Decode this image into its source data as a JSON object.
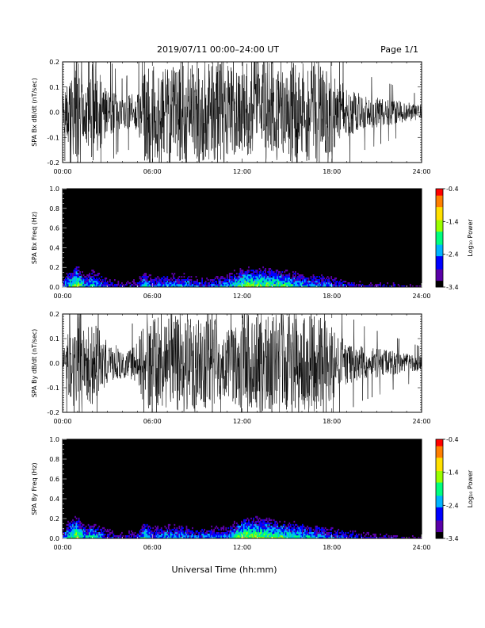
{
  "header": {
    "title": "2019/07/11  00:00–24:00 UT",
    "page": "Page 1/1"
  },
  "footer": {
    "xlabel": "Universal Time (hh:mm)"
  },
  "colors": {
    "trace": "#000000",
    "spectrogram_background": "#000000",
    "colorscale": [
      "#000000",
      "#5a00a8",
      "#0000ff",
      "#00b4ff",
      "#00ff7f",
      "#9aff00",
      "#ffe000",
      "#ff7f00",
      "#ff0000"
    ]
  },
  "chart_data": [
    {
      "type": "line",
      "ylabel": "SPA Bx dB/dt (nT/sec)",
      "xlim": [
        "00:00",
        "24:00"
      ],
      "ylim": [
        -0.2,
        0.2
      ],
      "x_ticks": [
        "00:00",
        "06:00",
        "12:00",
        "18:00",
        "24:00"
      ],
      "y_ticks": [
        "-0.2",
        "-0.1",
        "0.0",
        "0.1",
        "0.2"
      ],
      "series": [
        {
          "x_hours": [
            0,
            0.5,
            1,
            1.5,
            2,
            3,
            4,
            5,
            5.5,
            6,
            7,
            8,
            9,
            10,
            11,
            12,
            13,
            14,
            15,
            16,
            17,
            18,
            19,
            20,
            21,
            22,
            23,
            24
          ],
          "amplitude": [
            0.06,
            0.15,
            0.2,
            0.12,
            0.2,
            0.1,
            0.06,
            0.08,
            0.2,
            0.2,
            0.17,
            0.2,
            0.2,
            0.2,
            0.2,
            0.2,
            0.2,
            0.2,
            0.2,
            0.2,
            0.2,
            0.16,
            0.1,
            0.07,
            0.06,
            0.05,
            0.04,
            0.03
          ]
        }
      ]
    },
    {
      "type": "heatmap",
      "ylabel": "SPA Bx Freq (Hz)",
      "colorbar_label": "Log₁₀ Power",
      "colorbar_ticks": [
        "-0.4",
        "-1.4",
        "-2.4",
        "-3.4"
      ],
      "clim": [
        -3.4,
        -0.4
      ],
      "xlim": [
        "00:00",
        "24:00"
      ],
      "ylim": [
        0.0,
        1.0
      ],
      "x_ticks": [
        "00:00",
        "06:00",
        "12:00",
        "18:00",
        "24:00"
      ],
      "y_ticks": [
        "0.0",
        "0.2",
        "0.4",
        "0.6",
        "0.8",
        "1.0"
      ],
      "x_hours": [
        0,
        0.5,
        1,
        1.5,
        2,
        3,
        4,
        5,
        5.5,
        6,
        7,
        8,
        9,
        10,
        11,
        12,
        13,
        14,
        15,
        16,
        17,
        18,
        19,
        20,
        21,
        22,
        23,
        24
      ],
      "low_freq_power": [
        -2.6,
        -1.8,
        -1.4,
        -2.2,
        -1.9,
        -2.6,
        -2.9,
        -2.7,
        -1.9,
        -2.5,
        -2.2,
        -2.2,
        -2.5,
        -2.4,
        -2.2,
        -1.6,
        -1.5,
        -1.7,
        -1.8,
        -2.1,
        -2.2,
        -2.4,
        -2.7,
        -2.9,
        -3.0,
        -3.0,
        -3.1,
        -3.2
      ]
    },
    {
      "type": "line",
      "ylabel": "SPA By dB/dt (nT/sec)",
      "xlim": [
        "00:00",
        "24:00"
      ],
      "ylim": [
        -0.2,
        0.2
      ],
      "x_ticks": [
        "00:00",
        "06:00",
        "12:00",
        "18:00",
        "24:00"
      ],
      "y_ticks": [
        "-0.2",
        "-0.1",
        "0.0",
        "0.1",
        "0.2"
      ],
      "series": [
        {
          "x_hours": [
            0,
            0.5,
            1,
            1.5,
            2,
            3,
            4,
            5,
            5.5,
            6,
            7,
            8,
            9,
            10,
            11,
            12,
            13,
            14,
            15,
            16,
            17,
            18,
            19,
            20,
            21,
            22,
            23,
            24
          ],
          "amplitude": [
            0.05,
            0.15,
            0.2,
            0.12,
            0.2,
            0.09,
            0.06,
            0.08,
            0.2,
            0.2,
            0.18,
            0.2,
            0.2,
            0.2,
            0.14,
            0.2,
            0.2,
            0.2,
            0.2,
            0.2,
            0.2,
            0.15,
            0.09,
            0.07,
            0.06,
            0.05,
            0.04,
            0.03
          ]
        }
      ]
    },
    {
      "type": "heatmap",
      "ylabel": "SPA By Freq (Hz)",
      "colorbar_label": "Log₁₀ Power",
      "colorbar_ticks": [
        "-0.4",
        "-1.4",
        "-2.4",
        "-3.4"
      ],
      "clim": [
        -3.4,
        -0.4
      ],
      "xlim": [
        "00:00",
        "24:00"
      ],
      "ylim": [
        0.0,
        1.0
      ],
      "x_ticks": [
        "00:00",
        "06:00",
        "12:00",
        "18:00",
        "24:00"
      ],
      "y_ticks": [
        "0.0",
        "0.2",
        "0.4",
        "0.6",
        "0.8",
        "1.0"
      ],
      "x_hours": [
        0,
        0.5,
        1,
        1.5,
        2,
        3,
        4,
        5,
        5.5,
        6,
        7,
        8,
        9,
        10,
        11,
        12,
        13,
        14,
        15,
        16,
        17,
        18,
        19,
        20,
        21,
        22,
        23,
        24
      ],
      "low_freq_power": [
        -2.6,
        -1.7,
        -1.4,
        -2.2,
        -1.9,
        -2.6,
        -2.9,
        -2.7,
        -1.8,
        -2.4,
        -2.1,
        -2.2,
        -2.5,
        -2.3,
        -2.3,
        -1.5,
        -1.4,
        -1.6,
        -1.8,
        -2.0,
        -2.2,
        -2.4,
        -2.6,
        -2.8,
        -2.9,
        -3.0,
        -3.1,
        -3.2
      ]
    }
  ]
}
